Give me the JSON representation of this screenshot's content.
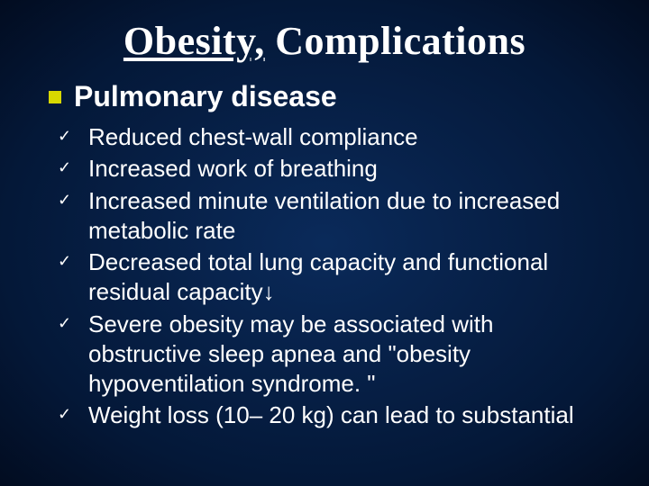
{
  "slide": {
    "title_part1": "Obesity,",
    "title_part2": " Complications",
    "title_fontsize": 44,
    "heading_bullet_color": "#d8d800",
    "heading_text": "Pulmonary disease",
    "heading_fontsize": 32,
    "background_gradient": {
      "center": "#0a2a5a",
      "mid": "#041838",
      "edge": "#020c20"
    },
    "text_color": "#ffffff",
    "checkmark_glyph": "✓",
    "body_fontsize": 26,
    "items": [
      " Reduced chest-wall compliance",
      " Increased work of breathing",
      " Increased minute ventilation due to increased metabolic rate",
      " Decreased total lung capacity and functional residual capacity↓",
      " Severe obesity may be associated with obstructive sleep apnea and \"obesity hypoventilation syndrome. \"",
      " Weight loss (10– 20 kg) can lead to substantial"
    ]
  }
}
